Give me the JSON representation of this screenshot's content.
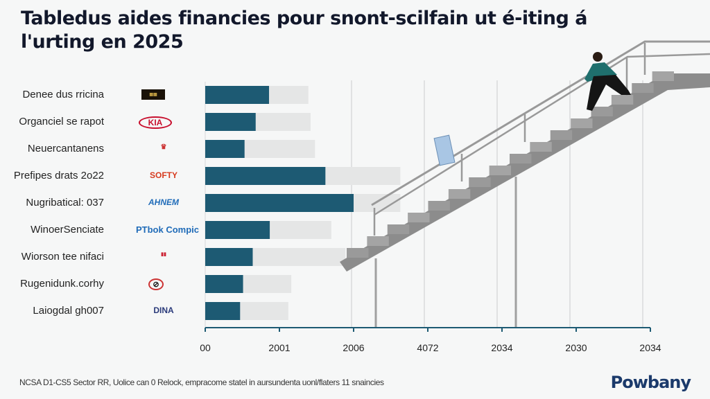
{
  "title": "Tabledus aides financies pour snont-scilfain ut é-iting á l'urting en 2025",
  "footer": {
    "note": "NCSA D1-CS5 Sector RR, Uolice can 0 Relock, empracome statel in aursundenta uonl/flaters 11 snaincies",
    "brand": "Powbany"
  },
  "colors": {
    "primary_bar": "#1d5a73",
    "secondary_bar": "#e5e6e6",
    "axis": "#1d5a73",
    "stairs": "#8f8f8f"
  },
  "chart_data": {
    "type": "bar",
    "orientation": "horizontal",
    "stacked": true,
    "title": "Tabledus aides financies pour snont-scilfain ut é-iting á l'urting en 2025",
    "categories": [
      "Denee dus rricina",
      "Organciel se rapot",
      "Neuercantanens",
      "Prefipes drats 2o22",
      "Nugribatical: 037",
      "WinoerSenciate",
      "Wiorson tee nifaci",
      "Rugenidunk.corhy",
      "Laiogdal gh007"
    ],
    "category_logos": [
      "dark-badge-logo",
      "KIA",
      "crest-logo",
      "SOFTY",
      "AHNEM",
      "PTbok Compic",
      "red-emblem-logo",
      "no-symbol-logo",
      "DINA"
    ],
    "x_tick_labels": [
      "00",
      "2001",
      "2006",
      "4072",
      "2034",
      "2030",
      "2034"
    ],
    "x_unit_note": "values in tick-interval units from the first tick",
    "series": [
      {
        "values": [
          0.86,
          0.68,
          0.53,
          1.62,
          2.0,
          0.87,
          0.64,
          0.51,
          0.47
        ]
      },
      {
        "values": [
          0.53,
          0.74,
          0.95,
          1.01,
          0.63,
          0.83,
          1.25,
          0.65,
          0.65
        ]
      }
    ],
    "xlim": [
      0,
      6
    ],
    "grid": true,
    "legend": "none"
  }
}
